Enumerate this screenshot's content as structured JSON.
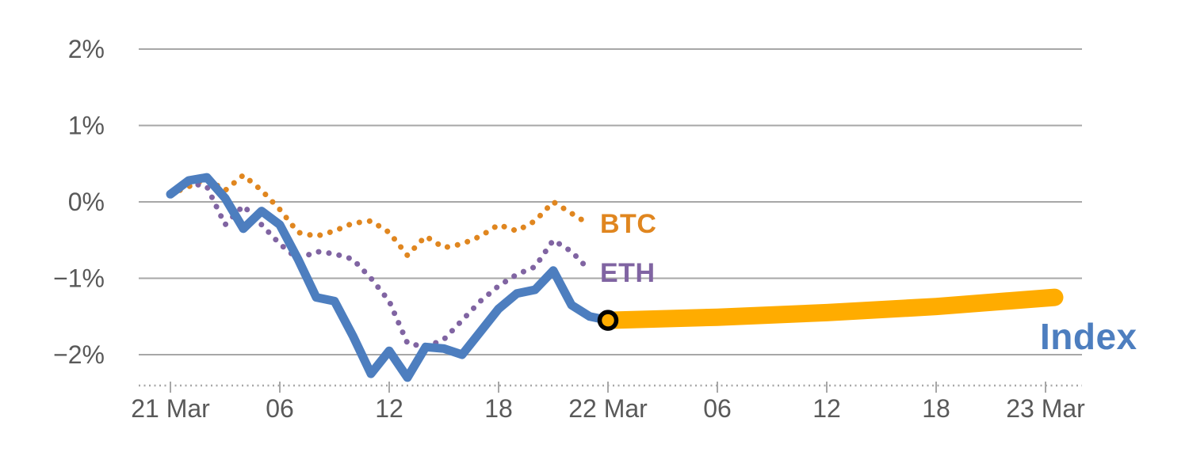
{
  "chart_data": {
    "type": "line",
    "title": "",
    "x_axis": {
      "unit": "hours",
      "range": [
        0,
        50
      ],
      "ticks": [
        {
          "h": 0,
          "label": "21 Mar"
        },
        {
          "h": 6,
          "label": "06"
        },
        {
          "h": 12,
          "label": "12"
        },
        {
          "h": 18,
          "label": "18"
        },
        {
          "h": 24,
          "label": "22 Mar"
        },
        {
          "h": 30,
          "label": "06"
        },
        {
          "h": 36,
          "label": "12"
        },
        {
          "h": 42,
          "label": "18"
        },
        {
          "h": 48,
          "label": "23 Mar"
        }
      ]
    },
    "y_axis": {
      "unit": "%",
      "range": [
        -2.4,
        2.2
      ],
      "ticks": [
        {
          "v": 2,
          "label": "2%"
        },
        {
          "v": 1,
          "label": "1%"
        },
        {
          "v": 0,
          "label": "0%"
        },
        {
          "v": -1,
          "label": "−1%"
        },
        {
          "v": -2,
          "label": "−2%"
        }
      ]
    },
    "grid_on": true,
    "grid_color": "#A7A7A7",
    "label_color": "#595959",
    "legend_position": "inline-end-of-line",
    "series": [
      {
        "name": "BTC",
        "color": "#E0861F",
        "line_style": "dotted",
        "points": [
          [
            0,
            0.1
          ],
          [
            1,
            0.2
          ],
          [
            2,
            0.3
          ],
          [
            3,
            0.15
          ],
          [
            4,
            0.35
          ],
          [
            5,
            0.15
          ],
          [
            6,
            -0.1
          ],
          [
            7,
            -0.4
          ],
          [
            8,
            -0.45
          ],
          [
            9,
            -0.38
          ],
          [
            10,
            -0.28
          ],
          [
            11,
            -0.25
          ],
          [
            12,
            -0.4
          ],
          [
            13,
            -0.7
          ],
          [
            14,
            -0.45
          ],
          [
            15,
            -0.6
          ],
          [
            16,
            -0.55
          ],
          [
            17,
            -0.45
          ],
          [
            18,
            -0.3
          ],
          [
            19,
            -0.38
          ],
          [
            20,
            -0.25
          ],
          [
            21,
            0.0
          ],
          [
            22,
            -0.15
          ],
          [
            23,
            -0.3
          ]
        ]
      },
      {
        "name": "ETH",
        "color": "#8064A2",
        "line_style": "dotted",
        "points": [
          [
            0,
            0.1
          ],
          [
            1,
            0.25
          ],
          [
            2,
            0.2
          ],
          [
            3,
            -0.3
          ],
          [
            4,
            -0.05
          ],
          [
            5,
            -0.3
          ],
          [
            6,
            -0.55
          ],
          [
            7,
            -0.75
          ],
          [
            8,
            -0.65
          ],
          [
            9,
            -0.68
          ],
          [
            10,
            -0.75
          ],
          [
            11,
            -1.0
          ],
          [
            12,
            -1.3
          ],
          [
            13,
            -1.85
          ],
          [
            14,
            -1.9
          ],
          [
            15,
            -1.8
          ],
          [
            16,
            -1.55
          ],
          [
            17,
            -1.3
          ],
          [
            18,
            -1.1
          ],
          [
            19,
            -0.95
          ],
          [
            20,
            -0.85
          ],
          [
            21,
            -0.5
          ],
          [
            22,
            -0.65
          ],
          [
            23,
            -0.9
          ]
        ]
      },
      {
        "name": "Index",
        "color": "#4D7EBF",
        "line_style": "solid",
        "points": [
          [
            0,
            0.1
          ],
          [
            1,
            0.28
          ],
          [
            2,
            0.32
          ],
          [
            3,
            0.05
          ],
          [
            4,
            -0.35
          ],
          [
            5,
            -0.12
          ],
          [
            6,
            -0.3
          ],
          [
            7,
            -0.75
          ],
          [
            8,
            -1.25
          ],
          [
            9,
            -1.3
          ],
          [
            10,
            -1.75
          ],
          [
            11,
            -2.25
          ],
          [
            12,
            -1.95
          ],
          [
            13,
            -2.3
          ],
          [
            14,
            -1.9
          ],
          [
            15,
            -1.92
          ],
          [
            16,
            -2.0
          ],
          [
            17,
            -1.7
          ],
          [
            18,
            -1.4
          ],
          [
            19,
            -1.2
          ],
          [
            20,
            -1.15
          ],
          [
            21,
            -0.9
          ],
          [
            22,
            -1.35
          ],
          [
            23,
            -1.5
          ],
          [
            24,
            -1.55
          ]
        ]
      }
    ],
    "forecast": {
      "for_series": "Index",
      "color": "#FFAC00",
      "points": [
        [
          24,
          -1.55
        ],
        [
          30,
          -1.51
        ],
        [
          36,
          -1.45
        ],
        [
          42,
          -1.37
        ],
        [
          48.5,
          -1.25
        ]
      ]
    },
    "marker": {
      "h": 24,
      "v": -1.55,
      "fill": "#FFAC00",
      "ring_color": "#000000"
    }
  }
}
